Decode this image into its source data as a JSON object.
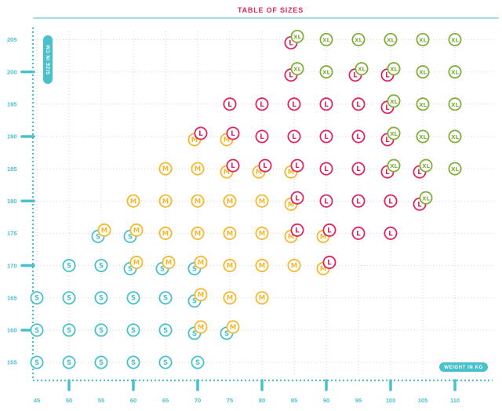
{
  "chart_data": {
    "type": "scatter",
    "title": "TABLE OF SIZES",
    "xlabel": "WEIGHT IN KG",
    "ylabel": "SIZE IN CM",
    "xlim": [
      40,
      112
    ],
    "ylim": [
      152,
      208
    ],
    "x_ticks": [
      45,
      50,
      55,
      60,
      65,
      70,
      75,
      80,
      85,
      90,
      95,
      100,
      105,
      110
    ],
    "x_major_ticks": [
      50,
      60,
      70,
      80,
      90,
      100,
      110
    ],
    "y_ticks": [
      155,
      160,
      165,
      170,
      175,
      180,
      185,
      190,
      195,
      200,
      205
    ],
    "y_major_ticks": [
      160,
      170,
      180,
      190,
      200
    ],
    "grid": true,
    "colors": {
      "S": "#49c1cc",
      "M": "#f5b82e",
      "L": "#e0245e",
      "XL": "#7fae3a",
      "axis": "#49c1cc",
      "title": "#e0245e"
    },
    "series": [
      {
        "name": "S",
        "points": [
          [
            45,
            155
          ],
          [
            50,
            155
          ],
          [
            55,
            155
          ],
          [
            60,
            155
          ],
          [
            65,
            155
          ],
          [
            70,
            155
          ],
          [
            45,
            160
          ],
          [
            50,
            160
          ],
          [
            55,
            160
          ],
          [
            60,
            160
          ],
          [
            65,
            160
          ],
          [
            70,
            160
          ],
          [
            75,
            160
          ],
          [
            45,
            165
          ],
          [
            50,
            165
          ],
          [
            55,
            165
          ],
          [
            60,
            165
          ],
          [
            65,
            165
          ],
          [
            70,
            165
          ],
          [
            50,
            170
          ],
          [
            55,
            170
          ],
          [
            60,
            170
          ],
          [
            65,
            170
          ],
          [
            70,
            170
          ],
          [
            55,
            175
          ],
          [
            60,
            175
          ]
        ]
      },
      {
        "name": "M",
        "points": [
          [
            70,
            160
          ],
          [
            75,
            160
          ],
          [
            70,
            165
          ],
          [
            75,
            165
          ],
          [
            80,
            165
          ],
          [
            60,
            170
          ],
          [
            65,
            170
          ],
          [
            70,
            170
          ],
          [
            75,
            170
          ],
          [
            80,
            170
          ],
          [
            85,
            170
          ],
          [
            90,
            170
          ],
          [
            55,
            175
          ],
          [
            60,
            175
          ],
          [
            65,
            175
          ],
          [
            70,
            175
          ],
          [
            75,
            175
          ],
          [
            80,
            175
          ],
          [
            85,
            175
          ],
          [
            90,
            175
          ],
          [
            60,
            180
          ],
          [
            65,
            180
          ],
          [
            70,
            180
          ],
          [
            75,
            180
          ],
          [
            80,
            180
          ],
          [
            85,
            180
          ],
          [
            65,
            185
          ],
          [
            70,
            185
          ],
          [
            75,
            185
          ],
          [
            80,
            185
          ],
          [
            85,
            185
          ],
          [
            70,
            190
          ],
          [
            75,
            190
          ]
        ]
      },
      {
        "name": "L",
        "points": [
          [
            90,
            170
          ],
          [
            85,
            175
          ],
          [
            90,
            175
          ],
          [
            95,
            175
          ],
          [
            100,
            175
          ],
          [
            85,
            180
          ],
          [
            90,
            180
          ],
          [
            95,
            180
          ],
          [
            100,
            180
          ],
          [
            105,
            180
          ],
          [
            75,
            185
          ],
          [
            80,
            185
          ],
          [
            85,
            185
          ],
          [
            90,
            185
          ],
          [
            95,
            185
          ],
          [
            100,
            185
          ],
          [
            105,
            185
          ],
          [
            70,
            190
          ],
          [
            75,
            190
          ],
          [
            80,
            190
          ],
          [
            85,
            190
          ],
          [
            90,
            190
          ],
          [
            95,
            190
          ],
          [
            100,
            190
          ],
          [
            75,
            195
          ],
          [
            80,
            195
          ],
          [
            85,
            195
          ],
          [
            90,
            195
          ],
          [
            95,
            195
          ],
          [
            100,
            195
          ],
          [
            85,
            200
          ],
          [
            95,
            200
          ],
          [
            100,
            200
          ],
          [
            85,
            205
          ]
        ]
      },
      {
        "name": "XL",
        "points": [
          [
            105,
            180
          ],
          [
            100,
            185
          ],
          [
            105,
            185
          ],
          [
            110,
            185
          ],
          [
            100,
            190
          ],
          [
            105,
            190
          ],
          [
            110,
            190
          ],
          [
            100,
            195
          ],
          [
            105,
            195
          ],
          [
            110,
            195
          ],
          [
            85,
            200
          ],
          [
            90,
            200
          ],
          [
            95,
            200
          ],
          [
            100,
            200
          ],
          [
            105,
            200
          ],
          [
            110,
            200
          ],
          [
            85,
            205
          ],
          [
            90,
            205
          ],
          [
            95,
            205
          ],
          [
            100,
            205
          ],
          [
            105,
            205
          ],
          [
            110,
            205
          ]
        ]
      }
    ]
  }
}
